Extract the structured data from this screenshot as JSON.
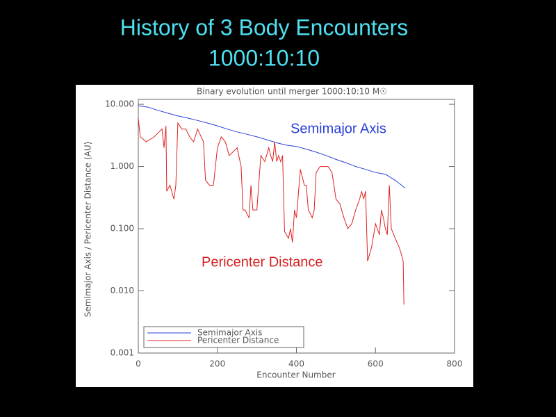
{
  "title": "History of 3 Body Encounters",
  "subtitle": "1000:10:10",
  "chart_data": {
    "type": "line",
    "title": "Binary evolution until merger 1000:10:10 M☉",
    "x_label": "Encounter Number",
    "y_label": "Semimajor Axis / Pericenter Distance (AU)",
    "log_y": true,
    "xlim": [
      0,
      800
    ],
    "xticks": [
      0,
      200,
      400,
      600,
      800
    ],
    "ylim": [
      0.001,
      12
    ],
    "yticks": [
      {
        "value": 10,
        "label": "10.000"
      },
      {
        "value": 1,
        "label": "1.000"
      },
      {
        "value": 0.1,
        "label": "0.100"
      },
      {
        "value": 0.01,
        "label": "0.010"
      },
      {
        "value": 0.001,
        "label": "0.001"
      }
    ],
    "legend": "lower left",
    "series": [
      {
        "name": "Semimajor Axis",
        "color": "#2a3fd8",
        "x": [
          0,
          25,
          50,
          75,
          100,
          125,
          150,
          175,
          200,
          225,
          250,
          275,
          300,
          325,
          350,
          375,
          400,
          425,
          450,
          475,
          500,
          525,
          550,
          575,
          600,
          625,
          650,
          675
        ],
        "values": [
          9.5,
          9.0,
          8.0,
          7.2,
          6.5,
          6.0,
          5.5,
          5.0,
          4.5,
          4.0,
          3.6,
          3.3,
          3.0,
          2.7,
          2.4,
          2.2,
          2.1,
          1.9,
          1.7,
          1.5,
          1.3,
          1.15,
          1.0,
          0.9,
          0.8,
          0.75,
          0.6,
          0.45
        ]
      },
      {
        "name": "Pericenter Distance",
        "color": "#e02020",
        "x": [
          0,
          5,
          20,
          40,
          60,
          65,
          70,
          72,
          80,
          90,
          95,
          100,
          110,
          120,
          130,
          140,
          150,
          165,
          170,
          180,
          190,
          200,
          210,
          220,
          230,
          250,
          260,
          265,
          270,
          280,
          285,
          290,
          295,
          300,
          310,
          320,
          330,
          335,
          340,
          345,
          350,
          355,
          360,
          365,
          370,
          380,
          385,
          390,
          395,
          400,
          410,
          420,
          425,
          430,
          440,
          445,
          450,
          460,
          480,
          490,
          500,
          510,
          520,
          530,
          540,
          550,
          560,
          565,
          570,
          575,
          580,
          590,
          600,
          610,
          615,
          620,
          625,
          630,
          635,
          640,
          650,
          660,
          665,
          670,
          672
        ],
        "values": [
          6,
          3,
          2.5,
          3,
          4,
          2,
          4.5,
          0.4,
          0.5,
          0.3,
          0.5,
          5,
          4,
          4,
          3,
          2.5,
          4,
          2.5,
          0.6,
          0.5,
          0.5,
          2,
          3,
          2.5,
          1.5,
          2,
          1,
          0.2,
          0.2,
          0.15,
          0.5,
          0.2,
          0.2,
          0.2,
          1.5,
          1.2,
          2,
          1.5,
          1.2,
          2.5,
          1.2,
          1.5,
          1.2,
          1.5,
          0.09,
          0.07,
          0.1,
          0.06,
          0.2,
          0.15,
          0.9,
          0.5,
          0.5,
          0.2,
          0.15,
          0.2,
          0.8,
          1.0,
          1.0,
          0.8,
          0.3,
          0.25,
          0.15,
          0.1,
          0.12,
          0.2,
          0.3,
          0.4,
          0.3,
          0.4,
          0.03,
          0.05,
          0.12,
          0.08,
          0.2,
          0.15,
          0.1,
          0.08,
          0.5,
          0.1,
          0.07,
          0.05,
          0.04,
          0.03,
          0.006
        ]
      }
    ],
    "annotations": [
      {
        "text": "Semimajor Axis",
        "color": "#2a3fd8"
      },
      {
        "text": "Pericenter Distance",
        "color": "#d42020"
      }
    ]
  }
}
